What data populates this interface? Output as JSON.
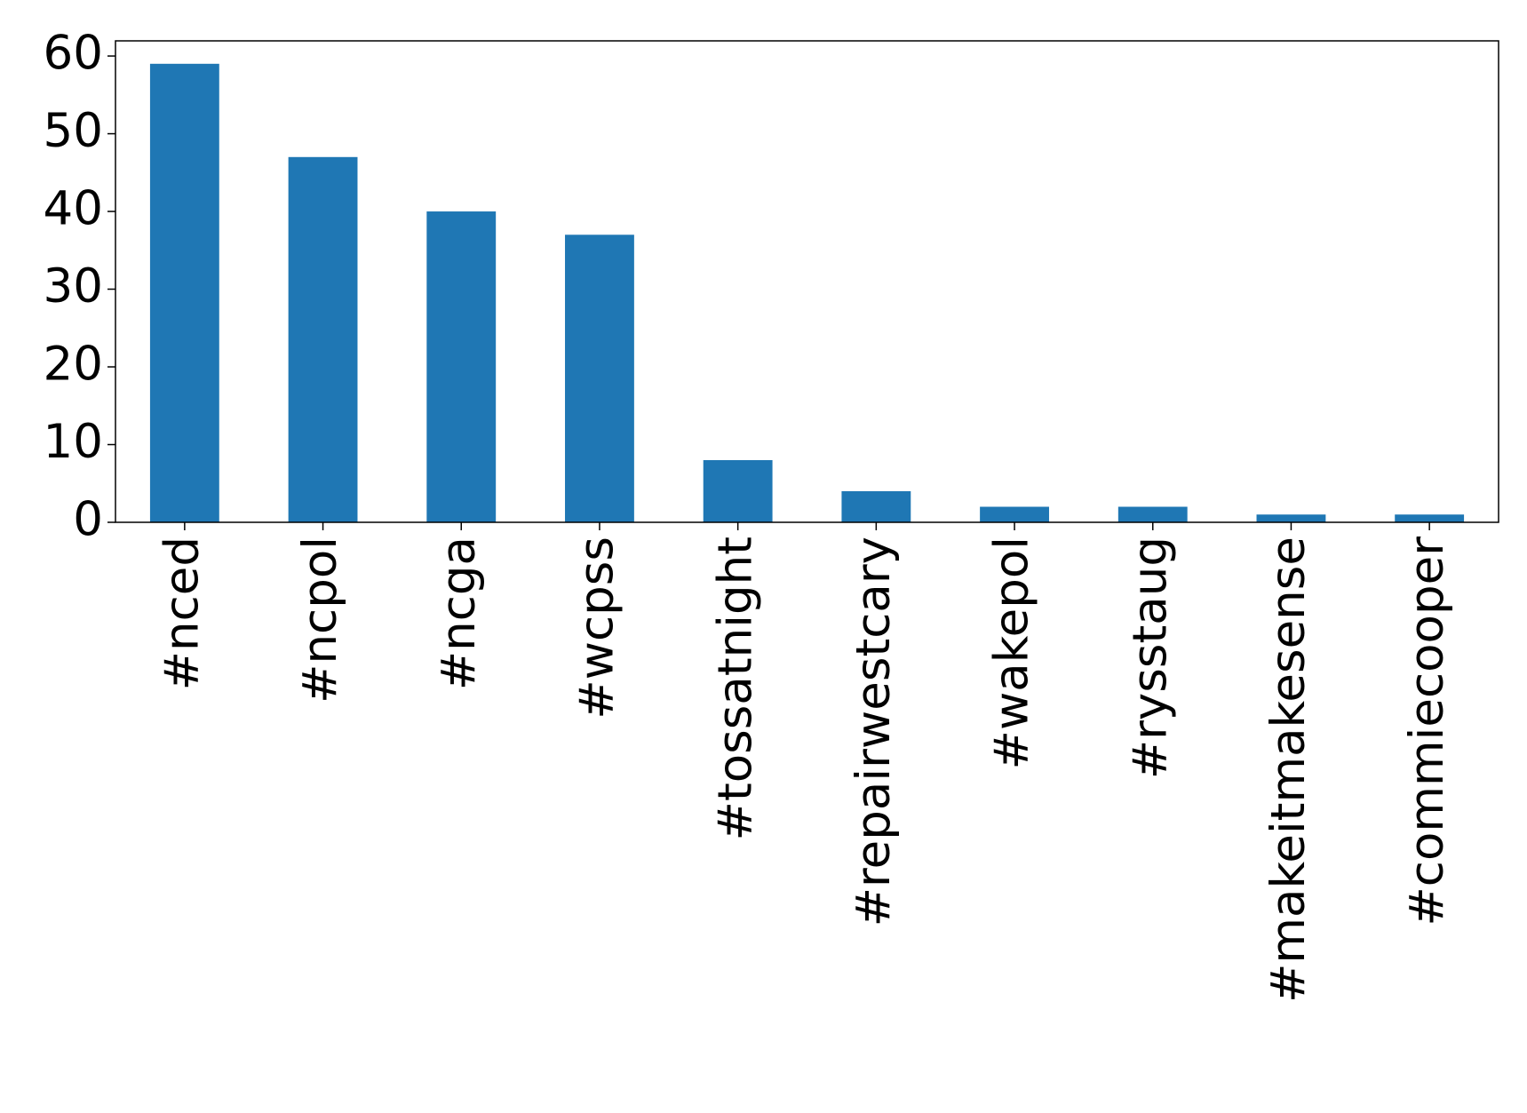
{
  "chart_data": {
    "type": "bar",
    "categories": [
      "#nced",
      "#ncpol",
      "#ncga",
      "#wcpss",
      "#tossatnight",
      "#repairwestcary",
      "#wakepol",
      "#rysstaug",
      "#makeitmakesense",
      "#commiecooper"
    ],
    "values": [
      59,
      47,
      40,
      37,
      8,
      4,
      2,
      2,
      1,
      1
    ],
    "color": "#1f77b4",
    "ylim": [
      0,
      61.95
    ],
    "yticks": [
      0,
      10,
      20,
      30,
      40,
      50,
      60
    ],
    "grid": false
  }
}
